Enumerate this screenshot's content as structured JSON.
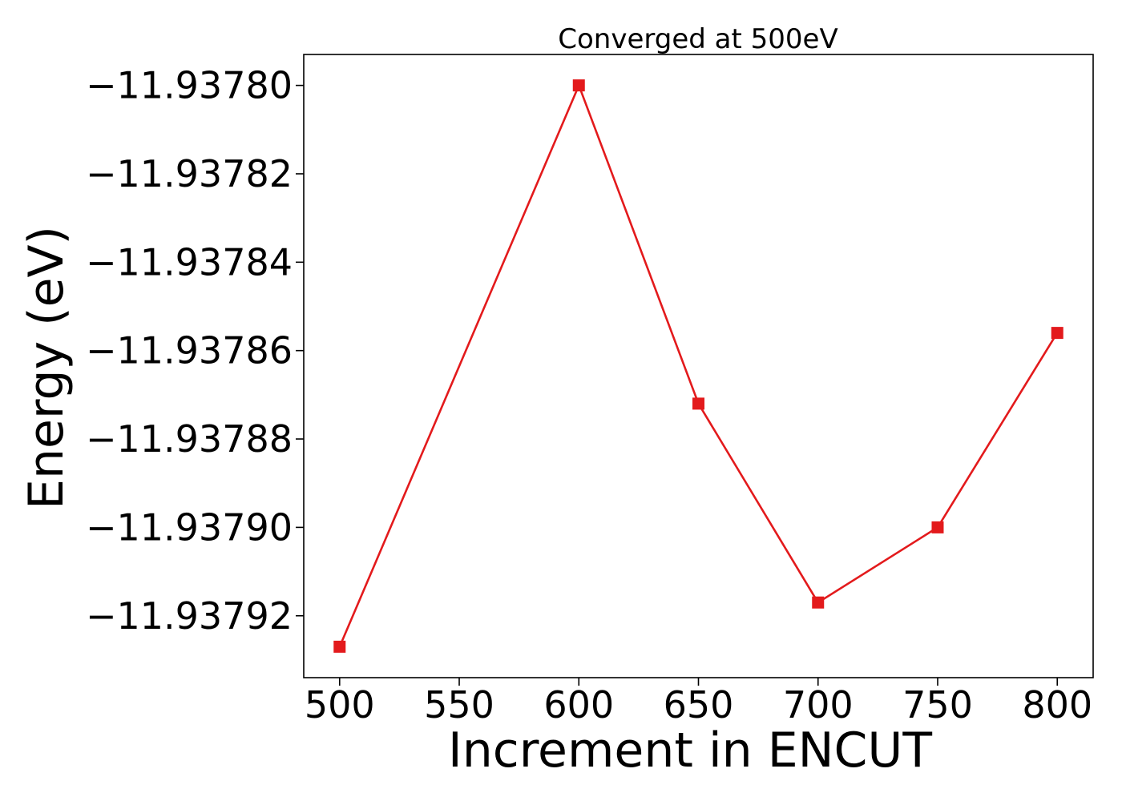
{
  "chart_data": {
    "type": "line",
    "title": "Converged at 500eV",
    "xlabel": "Increment in ENCUT",
    "ylabel": "Energy (eV)",
    "xlim": [
      485,
      815
    ],
    "ylim": [
      -11.937934,
      -11.937793
    ],
    "x_ticks": [
      500,
      550,
      600,
      650,
      700,
      750,
      800
    ],
    "x_tick_labels": [
      "500",
      "550",
      "600",
      "650",
      "700",
      "750",
      "800"
    ],
    "y_ticks": [
      -11.9378,
      -11.93782,
      -11.93784,
      -11.93786,
      -11.93788,
      -11.9379,
      -11.93792
    ],
    "y_tick_labels": [
      "−11.93780",
      "−11.93782",
      "−11.93784",
      "−11.93786",
      "−11.93788",
      "−11.93790",
      "−11.93792"
    ],
    "grid": false,
    "series": [
      {
        "color": "#e31a1c",
        "marker": "square",
        "x": [
          500,
          600,
          650,
          700,
          750,
          800
        ],
        "y": [
          -11.937927,
          -11.9378,
          -11.937872,
          -11.937917,
          -11.9379,
          -11.937856
        ]
      }
    ]
  }
}
